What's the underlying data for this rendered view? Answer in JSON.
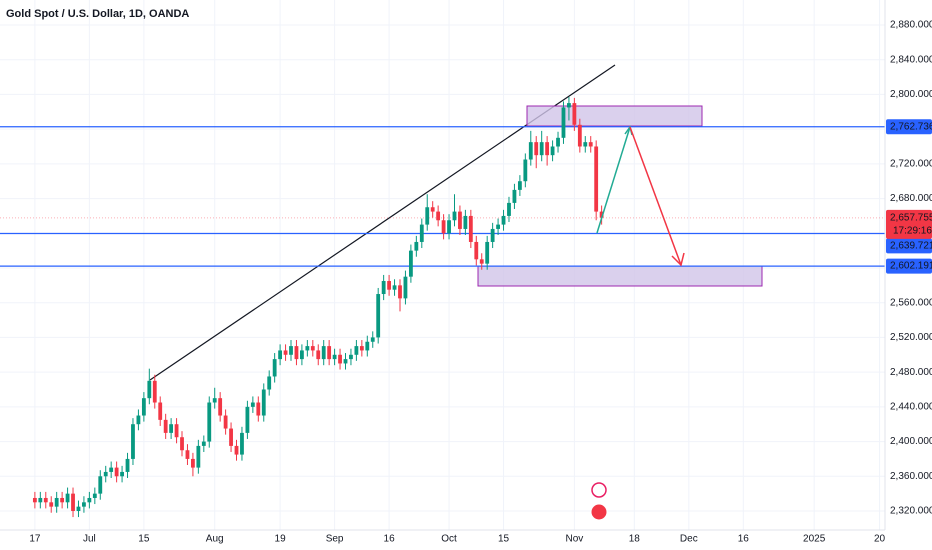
{
  "chart_data": {
    "type": "candlestick",
    "title": "Gold Spot / U.S. Dollar, 1D, OANDA",
    "up_color": "#089981",
    "down_color": "#f23645",
    "grid": true,
    "x": [
      0,
      1,
      2,
      3,
      4,
      5,
      6,
      7,
      8,
      9,
      10,
      11,
      12,
      13,
      14,
      15,
      16,
      17,
      18,
      19,
      20,
      21,
      22,
      23,
      24,
      25,
      26,
      27,
      28,
      29,
      30,
      31,
      32,
      33,
      34,
      35,
      36,
      37,
      38,
      39,
      40,
      41,
      42,
      43,
      44,
      45,
      46,
      47,
      48,
      49,
      50,
      51,
      52,
      53,
      54,
      55,
      56,
      57,
      58,
      59,
      60,
      61,
      62,
      63,
      64,
      65,
      66,
      67,
      68,
      69,
      70,
      71,
      72,
      73,
      74,
      75,
      76,
      77,
      78,
      79,
      80,
      81,
      82,
      83,
      84,
      85,
      86,
      87,
      88,
      89,
      90,
      91,
      92,
      93,
      94,
      95,
      96,
      97,
      98,
      99,
      100,
      101,
      102,
      103,
      104
    ],
    "candles": [
      [
        2335,
        2342,
        2323,
        2330
      ],
      [
        2330,
        2342,
        2323,
        2335
      ],
      [
        2335,
        2342,
        2323,
        2330
      ],
      [
        2330,
        2337,
        2318,
        2325
      ],
      [
        2325,
        2342,
        2318,
        2335
      ],
      [
        2335,
        2342,
        2323,
        2330
      ],
      [
        2330,
        2347,
        2323,
        2340
      ],
      [
        2340,
        2347,
        2313,
        2320
      ],
      [
        2320,
        2332,
        2313,
        2325
      ],
      [
        2325,
        2337,
        2318,
        2330
      ],
      [
        2330,
        2342,
        2323,
        2335
      ],
      [
        2335,
        2347,
        2328,
        2340
      ],
      [
        2340,
        2367,
        2333,
        2360
      ],
      [
        2360,
        2372,
        2353,
        2365
      ],
      [
        2365,
        2377,
        2358,
        2370
      ],
      [
        2370,
        2377,
        2353,
        2360
      ],
      [
        2360,
        2372,
        2353,
        2365
      ],
      [
        2365,
        2387,
        2358,
        2380
      ],
      [
        2380,
        2427,
        2373,
        2420
      ],
      [
        2420,
        2437,
        2413,
        2430
      ],
      [
        2430,
        2457,
        2423,
        2450
      ],
      [
        2450,
        2484,
        2443,
        2470
      ],
      [
        2470,
        2477,
        2438,
        2445
      ],
      [
        2445,
        2452,
        2418,
        2425
      ],
      [
        2425,
        2432,
        2403,
        2410
      ],
      [
        2410,
        2427,
        2403,
        2420
      ],
      [
        2420,
        2427,
        2398,
        2405
      ],
      [
        2405,
        2412,
        2383,
        2390
      ],
      [
        2390,
        2397,
        2373,
        2380
      ],
      [
        2380,
        2387,
        2360,
        2370
      ],
      [
        2370,
        2402,
        2363,
        2395
      ],
      [
        2395,
        2407,
        2388,
        2400
      ],
      [
        2400,
        2452,
        2393,
        2445
      ],
      [
        2445,
        2462,
        2438,
        2450
      ],
      [
        2450,
        2457,
        2423,
        2430
      ],
      [
        2430,
        2437,
        2408,
        2415
      ],
      [
        2415,
        2422,
        2388,
        2395
      ],
      [
        2395,
        2402,
        2378,
        2385
      ],
      [
        2385,
        2417,
        2378,
        2410
      ],
      [
        2410,
        2447,
        2403,
        2440
      ],
      [
        2440,
        2452,
        2433,
        2445
      ],
      [
        2445,
        2452,
        2423,
        2430
      ],
      [
        2430,
        2467,
        2423,
        2460
      ],
      [
        2460,
        2482,
        2453,
        2475
      ],
      [
        2475,
        2502,
        2468,
        2495
      ],
      [
        2495,
        2512,
        2488,
        2505
      ],
      [
        2505,
        2512,
        2493,
        2500
      ],
      [
        2500,
        2517,
        2493,
        2510
      ],
      [
        2510,
        2517,
        2488,
        2495
      ],
      [
        2495,
        2512,
        2488,
        2505
      ],
      [
        2505,
        2517,
        2498,
        2510
      ],
      [
        2510,
        2517,
        2498,
        2505
      ],
      [
        2505,
        2512,
        2488,
        2495
      ],
      [
        2495,
        2517,
        2488,
        2510
      ],
      [
        2510,
        2517,
        2488,
        2495
      ],
      [
        2495,
        2507,
        2488,
        2500
      ],
      [
        2500,
        2507,
        2483,
        2490
      ],
      [
        2490,
        2502,
        2483,
        2495
      ],
      [
        2495,
        2507,
        2488,
        2500
      ],
      [
        2500,
        2517,
        2493,
        2510
      ],
      [
        2510,
        2517,
        2498,
        2505
      ],
      [
        2505,
        2522,
        2498,
        2515
      ],
      [
        2515,
        2527,
        2508,
        2520
      ],
      [
        2520,
        2577,
        2513,
        2570
      ],
      [
        2570,
        2592,
        2563,
        2585
      ],
      [
        2585,
        2592,
        2568,
        2575
      ],
      [
        2575,
        2587,
        2568,
        2580
      ],
      [
        2580,
        2587,
        2550,
        2565
      ],
      [
        2565,
        2597,
        2558,
        2590
      ],
      [
        2590,
        2627,
        2583,
        2620
      ],
      [
        2620,
        2637,
        2613,
        2630
      ],
      [
        2630,
        2657,
        2623,
        2650
      ],
      [
        2650,
        2685,
        2643,
        2670
      ],
      [
        2670,
        2677,
        2658,
        2665
      ],
      [
        2665,
        2672,
        2648,
        2655
      ],
      [
        2655,
        2662,
        2633,
        2640
      ],
      [
        2640,
        2662,
        2633,
        2655
      ],
      [
        2655,
        2685,
        2648,
        2665
      ],
      [
        2665,
        2672,
        2638,
        2645
      ],
      [
        2645,
        2667,
        2638,
        2660
      ],
      [
        2660,
        2667,
        2623,
        2630
      ],
      [
        2630,
        2637,
        2603,
        2610
      ],
      [
        2610,
        2617,
        2598,
        2605
      ],
      [
        2605,
        2637,
        2598,
        2630
      ],
      [
        2630,
        2652,
        2623,
        2645
      ],
      [
        2645,
        2657,
        2638,
        2650
      ],
      [
        2650,
        2667,
        2643,
        2660
      ],
      [
        2660,
        2682,
        2653,
        2675
      ],
      [
        2675,
        2697,
        2668,
        2690
      ],
      [
        2690,
        2707,
        2683,
        2700
      ],
      [
        2700,
        2732,
        2693,
        2725
      ],
      [
        2725,
        2758,
        2718,
        2745
      ],
      [
        2745,
        2752,
        2715,
        2730
      ],
      [
        2730,
        2758,
        2723,
        2745
      ],
      [
        2745,
        2752,
        2718,
        2730
      ],
      [
        2730,
        2747,
        2723,
        2740
      ],
      [
        2740,
        2757,
        2733,
        2750
      ],
      [
        2750,
        2792,
        2743,
        2785
      ],
      [
        2785,
        2797,
        2770,
        2790
      ],
      [
        2790,
        2796,
        2758,
        2765
      ],
      [
        2765,
        2772,
        2733,
        2740
      ],
      [
        2740,
        2752,
        2733,
        2745
      ],
      [
        2745,
        2752,
        2733,
        2740
      ],
      [
        2740,
        2747,
        2655,
        2665
      ],
      [
        2665,
        2672,
        2650,
        2658
      ]
    ],
    "xlim": [
      -6.4,
      156
    ],
    "xticks": [
      {
        "value": 0,
        "label": "17"
      },
      {
        "value": 10,
        "label": "Jul"
      },
      {
        "value": 20,
        "label": "15"
      },
      {
        "value": 33,
        "label": "Aug"
      },
      {
        "value": 45,
        "label": "19"
      },
      {
        "value": 55,
        "label": "Sep"
      },
      {
        "value": 65,
        "label": "16"
      },
      {
        "value": 76,
        "label": "Oct"
      },
      {
        "value": 86,
        "label": "15"
      },
      {
        "value": 99,
        "label": "Nov"
      },
      {
        "value": 110,
        "label": "18"
      },
      {
        "value": 120,
        "label": "Dec"
      },
      {
        "value": 130,
        "label": "16"
      },
      {
        "value": 143,
        "label": "2025"
      },
      {
        "value": 155,
        "label": "20"
      }
    ],
    "ylim": [
      2298.1,
      2908.8
    ],
    "yticks": [
      {
        "value": 2320,
        "label": "2,320.000"
      },
      {
        "value": 2360,
        "label": "2,360.000"
      },
      {
        "value": 2400,
        "label": "2,400.000"
      },
      {
        "value": 2440,
        "label": "2,440.000"
      },
      {
        "value": 2480,
        "label": "2,480.000"
      },
      {
        "value": 2520,
        "label": "2,520.000"
      },
      {
        "value": 2560,
        "label": "2,560.000"
      },
      {
        "value": 2600,
        "label": "2,600.000"
      },
      {
        "value": 2640,
        "label": "2,640.000"
      },
      {
        "value": 2680,
        "label": "2,680.000"
      },
      {
        "value": 2720,
        "label": "2,720.000"
      },
      {
        "value": 2760,
        "label": "2,760.000"
      },
      {
        "value": 2800,
        "label": "2,800.000"
      },
      {
        "value": 2840,
        "label": "2,840.000"
      },
      {
        "value": 2880,
        "label": "2,880.000"
      }
    ],
    "levels": [
      {
        "value": 2762.736,
        "label": "2,762.736",
        "color": "#2962ff"
      },
      {
        "value": 2639.721,
        "label": "2,639.721",
        "color": "#2962ff"
      },
      {
        "value": 2602.191,
        "label": "2,602.191",
        "color": "#2962ff"
      }
    ],
    "current_price": {
      "value": 2657.755,
      "label": "2,657.755",
      "countdown": "17:29:16",
      "color": "#f23645"
    }
  }
}
